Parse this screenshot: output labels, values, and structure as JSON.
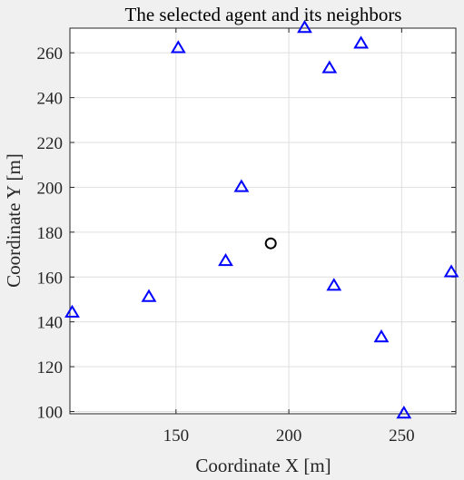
{
  "chart_data": {
    "type": "scatter",
    "title": "The selected agent and its neighbors",
    "xlabel": "Coordinate X [m]",
    "ylabel": "Coordinate Y [m]",
    "xlim": [
      103,
      274
    ],
    "ylim": [
      99,
      271
    ],
    "xticks": [
      150,
      200,
      250
    ],
    "yticks": [
      100,
      120,
      140,
      160,
      180,
      200,
      220,
      240,
      260
    ],
    "grid": true,
    "series": [
      {
        "marker": "triangle",
        "color": "#0000ff",
        "points": [
          {
            "x": 104,
            "y": 144
          },
          {
            "x": 138,
            "y": 151
          },
          {
            "x": 151,
            "y": 262
          },
          {
            "x": 172,
            "y": 167
          },
          {
            "x": 179,
            "y": 200
          },
          {
            "x": 207,
            "y": 271
          },
          {
            "x": 218,
            "y": 253
          },
          {
            "x": 220,
            "y": 156
          },
          {
            "x": 232,
            "y": 264
          },
          {
            "x": 241,
            "y": 133
          },
          {
            "x": 251,
            "y": 99
          },
          {
            "x": 272,
            "y": 162
          }
        ]
      },
      {
        "marker": "circle",
        "color": "#000000",
        "points": [
          {
            "x": 192,
            "y": 175
          }
        ]
      }
    ]
  }
}
